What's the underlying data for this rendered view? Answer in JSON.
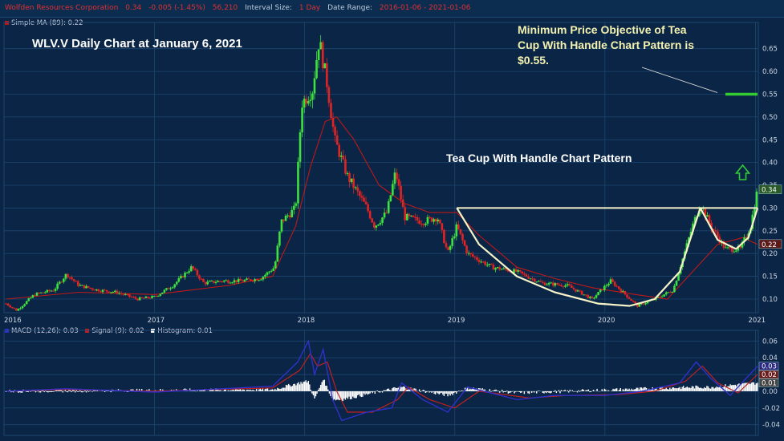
{
  "header": {
    "company": "Wolfden Resources Corporation",
    "last": "0.34",
    "change": "-0.005 (-1.45%)",
    "volume": "56,210",
    "interval_label": "Interval Size:",
    "interval_value": "1 Day",
    "range_label": "Date Range:",
    "range_value": "2016-01-06 - 2021-01-06"
  },
  "legend": {
    "sma": "Simple MA (89): 0.22",
    "macd": "MACD (12,26): 0.03",
    "signal": "Signal (9): 0.02",
    "histogram": "Histogram: 0.01"
  },
  "annotations": {
    "title": "WLV.V Daily Chart at January 6, 2021",
    "objective": "Minimum Price Objective of Tea Cup With Handle Chart Pattern is $0.55.",
    "pattern": "Tea Cup With Handle Chart Pattern"
  },
  "colors": {
    "background": "#0a2545",
    "grid": "#1d4670",
    "up": "#3fe03f",
    "down": "#e02424",
    "sma": "#c01818",
    "macd": "#3030c8",
    "signal": "#c02020",
    "histogram": "#ffffff",
    "cup": "#f6f3c8",
    "target": "#33cc33"
  },
  "chart_data": [
    {
      "type": "candlestick",
      "title": "WLV.V Daily Chart at January 6, 2021",
      "x_tick_labels": [
        "2016",
        "2017",
        "2018",
        "2019",
        "2020",
        "2021"
      ],
      "y_tick_labels": [
        "0.10",
        "0.15",
        "0.20",
        "0.25",
        "0.30",
        "0.35",
        "0.40",
        "0.45",
        "0.50",
        "0.55",
        "0.60",
        "0.65"
      ],
      "ylim": [
        0.07,
        0.69
      ],
      "price_labels": [
        "0.34",
        "0.22"
      ],
      "grid": true,
      "price_path": [
        [
          "2016-01-06",
          0.09
        ],
        [
          "2016-02-01",
          0.075
        ],
        [
          "2016-03-15",
          0.11
        ],
        [
          "2016-05-01",
          0.12
        ],
        [
          "2016-06-01",
          0.155
        ],
        [
          "2016-07-01",
          0.13
        ],
        [
          "2016-08-15",
          0.12
        ],
        [
          "2016-10-01",
          0.115
        ],
        [
          "2016-11-20",
          0.1
        ],
        [
          "2017-01-01",
          0.105
        ],
        [
          "2017-02-15",
          0.13
        ],
        [
          "2017-04-01",
          0.17
        ],
        [
          "2017-05-01",
          0.135
        ],
        [
          "2017-06-15",
          0.14
        ],
        [
          "2017-08-01",
          0.14
        ],
        [
          "2017-09-15",
          0.145
        ],
        [
          "2017-10-20",
          0.17
        ],
        [
          "2017-11-05",
          0.27
        ],
        [
          "2017-12-10",
          0.3
        ],
        [
          "2017-12-25",
          0.53
        ],
        [
          "2018-01-20",
          0.56
        ],
        [
          "2018-02-05",
          0.67
        ],
        [
          "2018-02-25",
          0.57
        ],
        [
          "2018-03-15",
          0.45
        ],
        [
          "2018-04-15",
          0.37
        ],
        [
          "2018-06-01",
          0.3
        ],
        [
          "2018-06-20",
          0.26
        ],
        [
          "2018-07-20",
          0.29
        ],
        [
          "2018-08-10",
          0.38
        ],
        [
          "2018-09-01",
          0.28
        ],
        [
          "2018-10-15",
          0.27
        ],
        [
          "2018-11-20",
          0.28
        ],
        [
          "2018-12-15",
          0.2
        ],
        [
          "2019-01-06",
          0.26
        ],
        [
          "2019-02-01",
          0.2
        ],
        [
          "2019-04-01",
          0.17
        ],
        [
          "2019-06-01",
          0.16
        ],
        [
          "2019-08-01",
          0.135
        ],
        [
          "2019-10-01",
          0.13
        ],
        [
          "2019-12-01",
          0.1
        ],
        [
          "2020-01-15",
          0.14
        ],
        [
          "2020-03-20",
          0.085
        ],
        [
          "2020-05-01",
          0.1
        ],
        [
          "2020-06-15",
          0.12
        ],
        [
          "2020-08-01",
          0.26
        ],
        [
          "2020-08-20",
          0.31
        ],
        [
          "2020-09-15",
          0.26
        ],
        [
          "2020-10-20",
          0.21
        ],
        [
          "2020-11-25",
          0.21
        ],
        [
          "2020-12-20",
          0.26
        ],
        [
          "2021-01-06",
          0.34
        ]
      ],
      "sma_path": [
        [
          "2016-01-06",
          0.1
        ],
        [
          "2016-07-01",
          0.115
        ],
        [
          "2017-01-01",
          0.11
        ],
        [
          "2017-07-01",
          0.13
        ],
        [
          "2017-10-15",
          0.15
        ],
        [
          "2017-12-10",
          0.26
        ],
        [
          "2018-01-15",
          0.39
        ],
        [
          "2018-02-20",
          0.49
        ],
        [
          "2018-03-20",
          0.5
        ],
        [
          "2018-05-01",
          0.45
        ],
        [
          "2018-07-01",
          0.35
        ],
        [
          "2018-09-01",
          0.31
        ],
        [
          "2018-11-01",
          0.29
        ],
        [
          "2019-01-06",
          0.29
        ],
        [
          "2019-03-01",
          0.24
        ],
        [
          "2019-06-01",
          0.17
        ],
        [
          "2019-09-01",
          0.145
        ],
        [
          "2019-12-01",
          0.125
        ],
        [
          "2020-03-15",
          0.11
        ],
        [
          "2020-06-01",
          0.1
        ],
        [
          "2020-08-01",
          0.16
        ],
        [
          "2020-10-01",
          0.22
        ],
        [
          "2020-12-01",
          0.235
        ],
        [
          "2021-01-06",
          0.22
        ]
      ],
      "cup_path": [
        [
          "2019-01-06",
          0.3
        ],
        [
          "2019-03-01",
          0.22
        ],
        [
          "2019-06-01",
          0.15
        ],
        [
          "2019-09-01",
          0.115
        ],
        [
          "2019-12-15",
          0.09
        ],
        [
          "2020-03-01",
          0.085
        ],
        [
          "2020-05-01",
          0.1
        ],
        [
          "2020-07-01",
          0.16
        ],
        [
          "2020-08-20",
          0.3
        ],
        [
          "2020-10-01",
          0.23
        ],
        [
          "2020-11-15",
          0.21
        ],
        [
          "2020-12-15",
          0.235
        ],
        [
          "2021-01-06",
          0.3
        ]
      ],
      "resistance": {
        "value": 0.3,
        "from": "2019-01-06",
        "to": "2021-01-06"
      },
      "target": {
        "value": 0.55,
        "from": "2020-10-20",
        "to": "2021-01-06"
      }
    },
    {
      "type": "macd",
      "y_tick_labels": [
        "0.06",
        "0.04",
        "0.02",
        "0.00",
        "-0.02",
        "-0.04"
      ],
      "ylim": [
        -0.047,
        0.067
      ],
      "value_labels": [
        "0.03",
        "0.02",
        "0.01"
      ],
      "grid": true,
      "series": [
        {
          "name": "MACD (12,26)",
          "values": [
            [
              "2016-01-06",
              0.0
            ],
            [
              "2016-06-01",
              0.003
            ],
            [
              "2017-01-01",
              -0.001
            ],
            [
              "2017-10-15",
              0.006
            ],
            [
              "2017-12-15",
              0.035
            ],
            [
              "2018-01-10",
              0.06
            ],
            [
              "2018-01-25",
              0.02
            ],
            [
              "2018-02-15",
              0.05
            ],
            [
              "2018-03-10",
              -0.01
            ],
            [
              "2018-04-01",
              -0.035
            ],
            [
              "2018-06-01",
              -0.025
            ],
            [
              "2018-08-01",
              -0.02
            ],
            [
              "2018-08-25",
              0.01
            ],
            [
              "2018-10-15",
              -0.01
            ],
            [
              "2018-12-15",
              -0.025
            ],
            [
              "2019-02-01",
              0.005
            ],
            [
              "2019-06-01",
              -0.01
            ],
            [
              "2019-09-01",
              -0.005
            ],
            [
              "2020-01-01",
              -0.005
            ],
            [
              "2020-04-01",
              0.0
            ],
            [
              "2020-07-01",
              0.01
            ],
            [
              "2020-08-10",
              0.035
            ],
            [
              "2020-09-15",
              0.015
            ],
            [
              "2020-11-01",
              -0.005
            ],
            [
              "2021-01-06",
              0.03
            ]
          ]
        },
        {
          "name": "Signal (9)",
          "values": [
            [
              "2016-01-06",
              0.0
            ],
            [
              "2016-06-01",
              0.002
            ],
            [
              "2017-01-01",
              0.0
            ],
            [
              "2017-10-15",
              0.004
            ],
            [
              "2017-12-20",
              0.025
            ],
            [
              "2018-01-15",
              0.045
            ],
            [
              "2018-02-01",
              0.03
            ],
            [
              "2018-02-25",
              0.035
            ],
            [
              "2018-03-20",
              0.0
            ],
            [
              "2018-04-15",
              -0.025
            ],
            [
              "2018-06-15",
              -0.025
            ],
            [
              "2018-08-15",
              -0.01
            ],
            [
              "2018-09-10",
              0.005
            ],
            [
              "2018-11-01",
              -0.01
            ],
            [
              "2019-01-01",
              -0.02
            ],
            [
              "2019-03-01",
              0.0
            ],
            [
              "2019-07-01",
              -0.008
            ],
            [
              "2019-10-01",
              -0.005
            ],
            [
              "2020-02-01",
              -0.004
            ],
            [
              "2020-05-01",
              0.0
            ],
            [
              "2020-07-15",
              0.012
            ],
            [
              "2020-08-25",
              0.03
            ],
            [
              "2020-10-01",
              0.01
            ],
            [
              "2020-11-20",
              -0.002
            ],
            [
              "2021-01-06",
              0.02
            ]
          ]
        },
        {
          "name": "Histogram",
          "values": [
            [
              "2016-01-06",
              0.0
            ],
            [
              "2017-10-15",
              0.002
            ],
            [
              "2017-12-20",
              0.01
            ],
            [
              "2018-01-10",
              0.012
            ],
            [
              "2018-01-25",
              -0.01
            ],
            [
              "2018-02-15",
              0.015
            ],
            [
              "2018-03-10",
              -0.01
            ],
            [
              "2018-04-01",
              -0.01
            ],
            [
              "2018-08-25",
              0.005
            ],
            [
              "2018-12-15",
              -0.005
            ],
            [
              "2019-02-01",
              0.004
            ],
            [
              "2019-06-01",
              -0.002
            ],
            [
              "2020-08-10",
              0.005
            ],
            [
              "2020-09-15",
              0.005
            ],
            [
              "2021-01-06",
              0.01
            ]
          ]
        }
      ]
    }
  ]
}
